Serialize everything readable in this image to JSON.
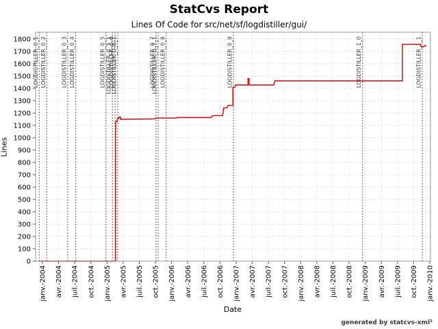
{
  "header": {
    "title": "StatCvs Report",
    "subtitle": "Lines Of Code for src/net/sf/logdistiller/gui/"
  },
  "footer": {
    "credit": "generated by statcvs-xml²"
  },
  "chart_data": {
    "type": "line",
    "title": "StatCvs Report",
    "subtitle": "Lines Of Code for src/net/sf/logdistiller/gui/",
    "xlabel": "Date",
    "ylabel": "Lines",
    "ylim": [
      0,
      1800
    ],
    "y_tick_step": 100,
    "grid": true,
    "legend": "none",
    "x_unit": "months since janv.-2004, tick every 3 months",
    "x_ticks": [
      "janv.-2004",
      "avr.-2004",
      "juil.-2004",
      "oct.-2004",
      "janv.-2005",
      "avr.-2005",
      "juil.-2005",
      "oct.-2005",
      "janv.-2006",
      "avr.-2006",
      "juil.-2006",
      "oct.-2006",
      "janv.-2007",
      "avr.-2007",
      "juil.-2007",
      "oct.-2007",
      "janv.-2008",
      "avr.-2008",
      "juil.-2008",
      "oct.-2008",
      "janv.-2009",
      "avr.-2009",
      "juil.-2009",
      "oct.-2009",
      "janv.-2010"
    ],
    "series": [
      {
        "name": "Lines Of Code",
        "color": "#d40000",
        "points": [
          [
            -0.6,
            0
          ],
          [
            13.6,
            0
          ],
          [
            13.6,
            1132
          ],
          [
            13.9,
            1132
          ],
          [
            13.9,
            1155
          ],
          [
            14.2,
            1155
          ],
          [
            14.2,
            1168
          ],
          [
            14.5,
            1168
          ],
          [
            14.5,
            1150
          ],
          [
            20.8,
            1152
          ],
          [
            21.2,
            1160
          ],
          [
            24.9,
            1160
          ],
          [
            25.1,
            1164
          ],
          [
            31.4,
            1164
          ],
          [
            31.6,
            1180
          ],
          [
            33.5,
            1180
          ],
          [
            33.7,
            1242
          ],
          [
            34.3,
            1242
          ],
          [
            34.5,
            1262
          ],
          [
            35.4,
            1262
          ],
          [
            35.4,
            1410
          ],
          [
            35.8,
            1410
          ],
          [
            35.9,
            1428
          ],
          [
            38.2,
            1428
          ],
          [
            38.2,
            1480
          ],
          [
            38.4,
            1480
          ],
          [
            38.4,
            1428
          ],
          [
            43.0,
            1428
          ],
          [
            43.2,
            1461
          ],
          [
            66.9,
            1461
          ],
          [
            66.9,
            1758
          ],
          [
            70.2,
            1758
          ],
          [
            70.4,
            1738
          ],
          [
            70.9,
            1738
          ],
          [
            71.0,
            1746
          ],
          [
            71.4,
            1746
          ]
        ]
      }
    ],
    "tag_markers": [
      {
        "label": "LOGDISTILLER_0_1",
        "month": -0.6
      },
      {
        "label": "LOGDISTILLER_0_2",
        "month": 0.8
      },
      {
        "label": "LOGDISTILLER_0_3",
        "month": 4.7
      },
      {
        "label": "LOGDISTILLER_0_4",
        "month": 6.2
      },
      {
        "label": "LOGDISTILLER_0_5",
        "month": 11.8
      },
      {
        "label": "LOGDISTILLER_0_5_1",
        "month": 13.0
      },
      {
        "label": "LOGDISTILLER_0_6",
        "month": 13.5
      },
      {
        "label": "LOGDISTILLER_0_6_1",
        "month": 14.0
      },
      {
        "label": "LOGDISTILLER_0_7",
        "month": 21.1
      },
      {
        "label": "LOGDISTILLER_0_7_1",
        "month": 21.5
      },
      {
        "label": "LOGDISTILLER_0_8",
        "month": 23.0
      },
      {
        "label": "LOGDISTILLER_0_9",
        "month": 35.5
      },
      {
        "label": "LOGDISTILLER_1_0",
        "month": 59.5
      },
      {
        "label": "LOGDISTILLER_1_1",
        "month": 70.6
      }
    ],
    "colors": {
      "line": "#d40000",
      "marker_line": "#7a7a7a",
      "marker_label": "#3d3d3d",
      "gridline": "#cccccc",
      "plot_border": "#999999",
      "tick": "#555555",
      "tick_label": "#000000"
    }
  }
}
